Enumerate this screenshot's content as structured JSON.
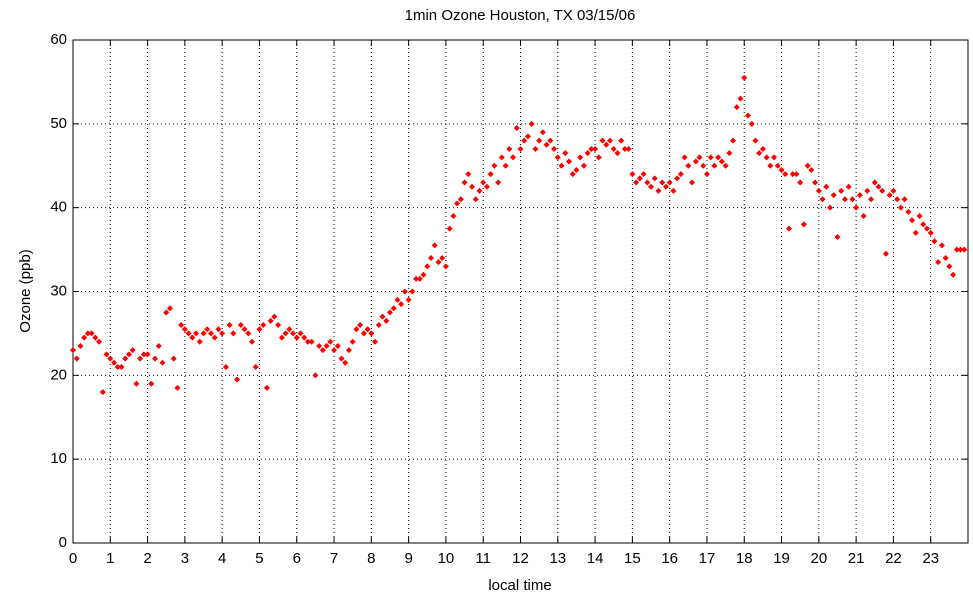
{
  "chart_data": {
    "type": "scatter",
    "title": "1min Ozone Houston, TX 03/15/06",
    "x_label": "local time",
    "y_label": "Ozone (ppb)",
    "color": "#ff0000",
    "grid": true,
    "xlim": [
      0,
      24
    ],
    "ylim": [
      0,
      60
    ],
    "xticks": [
      0,
      1,
      2,
      3,
      4,
      5,
      6,
      7,
      8,
      9,
      10,
      11,
      12,
      13,
      14,
      15,
      16,
      17,
      18,
      19,
      20,
      21,
      22,
      23
    ],
    "yticks": [
      0,
      10,
      20,
      30,
      40,
      50,
      60
    ],
    "x": [
      0.0,
      0.1,
      0.2,
      0.3,
      0.4,
      0.5,
      0.6,
      0.7,
      0.8,
      0.9,
      1.0,
      1.1,
      1.2,
      1.3,
      1.4,
      1.5,
      1.6,
      1.7,
      1.8,
      1.9,
      2.0,
      2.1,
      2.2,
      2.3,
      2.4,
      2.5,
      2.6,
      2.7,
      2.8,
      2.9,
      3.0,
      3.1,
      3.2,
      3.3,
      3.4,
      3.5,
      3.6,
      3.7,
      3.8,
      3.9,
      4.0,
      4.1,
      4.2,
      4.3,
      4.4,
      4.5,
      4.6,
      4.7,
      4.8,
      4.9,
      5.0,
      5.1,
      5.2,
      5.3,
      5.4,
      5.5,
      5.6,
      5.7,
      5.8,
      5.9,
      6.0,
      6.1,
      6.2,
      6.3,
      6.4,
      6.5,
      6.6,
      6.7,
      6.8,
      6.9,
      7.0,
      7.1,
      7.2,
      7.3,
      7.4,
      7.5,
      7.6,
      7.7,
      7.8,
      7.9,
      8.0,
      8.1,
      8.2,
      8.3,
      8.4,
      8.5,
      8.6,
      8.7,
      8.8,
      8.9,
      9.0,
      9.1,
      9.2,
      9.3,
      9.4,
      9.5,
      9.6,
      9.7,
      9.8,
      9.9,
      10.0,
      10.1,
      10.2,
      10.3,
      10.4,
      10.5,
      10.6,
      10.7,
      10.8,
      10.9,
      11.0,
      11.1,
      11.2,
      11.3,
      11.4,
      11.5,
      11.6,
      11.7,
      11.8,
      11.9,
      12.0,
      12.1,
      12.2,
      12.3,
      12.4,
      12.5,
      12.6,
      12.7,
      12.8,
      12.9,
      13.0,
      13.1,
      13.2,
      13.3,
      13.4,
      13.5,
      13.6,
      13.7,
      13.8,
      13.9,
      14.0,
      14.1,
      14.2,
      14.3,
      14.4,
      14.5,
      14.6,
      14.7,
      14.8,
      14.9,
      15.0,
      15.1,
      15.2,
      15.3,
      15.4,
      15.5,
      15.6,
      15.7,
      15.8,
      15.9,
      16.0,
      16.1,
      16.2,
      16.3,
      16.4,
      16.5,
      16.6,
      16.7,
      16.8,
      16.9,
      17.0,
      17.1,
      17.2,
      17.3,
      17.4,
      17.5,
      17.6,
      17.7,
      17.8,
      17.9,
      18.0,
      18.1,
      18.2,
      18.3,
      18.4,
      18.5,
      18.6,
      18.7,
      18.8,
      18.9,
      19.0,
      19.1,
      19.2,
      19.3,
      19.4,
      19.5,
      19.6,
      19.7,
      19.8,
      19.9,
      20.0,
      20.1,
      20.2,
      20.3,
      20.4,
      20.5,
      20.6,
      20.7,
      20.8,
      20.9,
      21.0,
      21.1,
      21.2,
      21.3,
      21.4,
      21.5,
      21.6,
      21.7,
      21.8,
      21.9,
      22.0,
      22.1,
      22.2,
      22.3,
      22.4,
      22.5,
      22.6,
      22.7,
      22.8,
      22.9,
      23.0,
      23.1,
      23.2,
      23.3,
      23.4,
      23.5,
      23.6,
      23.7,
      23.8,
      23.9
    ],
    "values": [
      23,
      22,
      23.5,
      24.5,
      25,
      25,
      24.5,
      24,
      18,
      22.5,
      22,
      21.5,
      21,
      21,
      22,
      22.5,
      23,
      19,
      22,
      22.5,
      22.5,
      19,
      22,
      23.5,
      21.5,
      27.5,
      28,
      22,
      18.5,
      26,
      25.5,
      25,
      24.5,
      25,
      24,
      25,
      25.5,
      25,
      24.5,
      25.5,
      25,
      21,
      26,
      25,
      19.5,
      26,
      25.5,
      25,
      24,
      21,
      25.5,
      26,
      18.5,
      26.5,
      27,
      26,
      24.5,
      25,
      25.5,
      25,
      24.5,
      25,
      24.5,
      24,
      24,
      20,
      23.5,
      23,
      23.5,
      24,
      23,
      23.5,
      22,
      21.5,
      23,
      24,
      25.5,
      26,
      25,
      25.5,
      25,
      24,
      26,
      27,
      26.5,
      27.5,
      28,
      29,
      28.5,
      30,
      29,
      30,
      31.5,
      31.5,
      32,
      33,
      34,
      35.5,
      33.5,
      34,
      33,
      37.5,
      39,
      40.5,
      41,
      43,
      44,
      42.5,
      41,
      42,
      43,
      42.5,
      44,
      45,
      43,
      46,
      45,
      47,
      46,
      49.5,
      47,
      48,
      48.5,
      50,
      47,
      48,
      49,
      47.5,
      48,
      47,
      46,
      45,
      46.5,
      45.5,
      44,
      44.5,
      46,
      45,
      46.5,
      47,
      47,
      46,
      48,
      47.5,
      48,
      47,
      46.5,
      48,
      47,
      47,
      44,
      43,
      43.5,
      44,
      43,
      42.5,
      43.5,
      42,
      43,
      42.5,
      43,
      42,
      43.5,
      44,
      46,
      45,
      43,
      45.5,
      46,
      45,
      44,
      46,
      45,
      46,
      45.5,
      45,
      46.5,
      48,
      52,
      53,
      55.5,
      51,
      50,
      48,
      46.5,
      47,
      46,
      45,
      46,
      45,
      44.5,
      44,
      37.5,
      44,
      44,
      43,
      38,
      45,
      44.5,
      43,
      42,
      41,
      42.5,
      40,
      41.5,
      36.5,
      42,
      41,
      42.5,
      41,
      40,
      41.5,
      39,
      42,
      41,
      43,
      42.5,
      42,
      34.5,
      41.5,
      42,
      41,
      40,
      41,
      39.5,
      38.5,
      37,
      39,
      38,
      37.5,
      37,
      36,
      33.5,
      35.5,
      34,
      33,
      32,
      35,
      35,
      35
    ]
  }
}
